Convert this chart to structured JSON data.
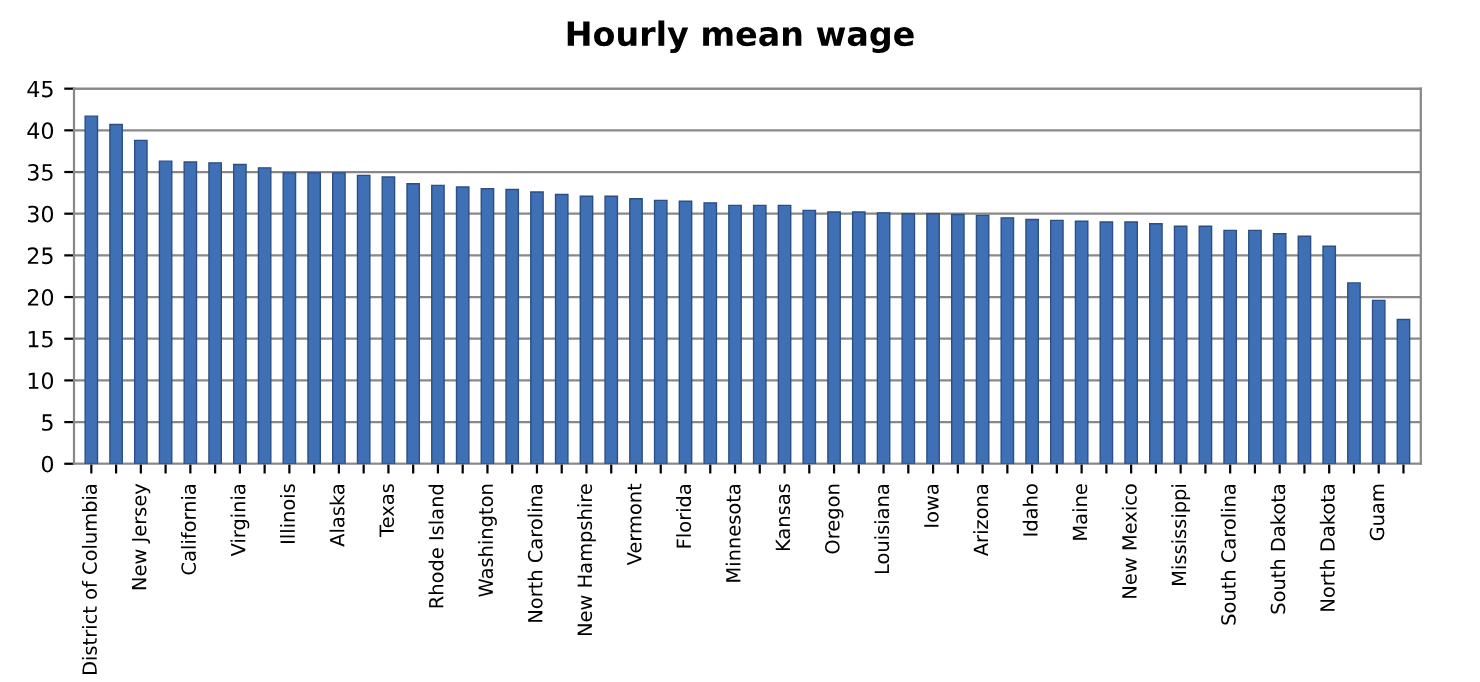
{
  "chart_data": {
    "type": "bar",
    "title": "Hourly mean wage",
    "categories": [
      "District of Columbia",
      null,
      "New Jersey",
      null,
      "California",
      null,
      "Virginia",
      null,
      "Illinois",
      null,
      "Alaska",
      null,
      "Texas",
      null,
      "Rhode Island",
      null,
      "Washington",
      null,
      "North Carolina",
      null,
      "New Hampshire",
      null,
      "Vermont",
      null,
      "Florida",
      null,
      "Minnesota",
      null,
      "Kansas",
      null,
      "Oregon",
      null,
      "Louisiana",
      null,
      "Iowa",
      null,
      "Arizona",
      null,
      "Idaho",
      null,
      "Maine",
      null,
      "New Mexico",
      null,
      "Mississippi",
      null,
      "South Carolina",
      null,
      "South Dakota",
      null,
      "North Dakota",
      null,
      "Guam",
      null
    ],
    "values": [
      41.7,
      40.7,
      38.8,
      36.3,
      36.2,
      36.1,
      35.9,
      35.5,
      34.9,
      34.9,
      34.9,
      34.6,
      34.4,
      33.6,
      33.4,
      33.2,
      33.0,
      32.9,
      32.6,
      32.3,
      32.1,
      32.1,
      31.8,
      31.6,
      31.5,
      31.3,
      31.0,
      31.0,
      31.0,
      30.4,
      30.2,
      30.2,
      30.1,
      30.0,
      30.0,
      29.9,
      29.8,
      29.5,
      29.3,
      29.2,
      29.1,
      29.0,
      29.0,
      28.8,
      28.5,
      28.5,
      28.0,
      28.0,
      27.6,
      27.3,
      26.1,
      21.7,
      19.6,
      17.3
    ],
    "color": "#3f6fb4",
    "ylim": [
      0,
      45
    ],
    "yticks": [
      0,
      5,
      10,
      15,
      20,
      25,
      30,
      35,
      40,
      45
    ],
    "grid": "y"
  }
}
